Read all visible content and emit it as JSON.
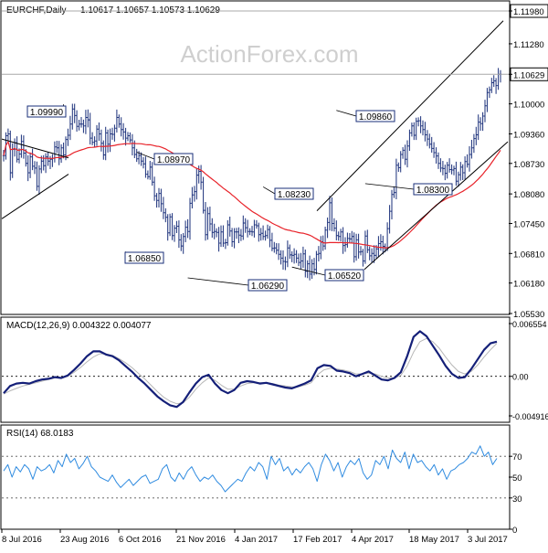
{
  "chart_data": [
    {
      "type": "ohlc",
      "panel": "price",
      "title": "EURCHF,Daily",
      "ohlc_header": "1.10617 1.10657 1.10573 1.10629",
      "watermark": "ActionForex.com",
      "ylim": [
        1.0553,
        1.1198
      ],
      "y_ticks": [
        {
          "value": 1.1198,
          "label": "1.11980",
          "highlight": true
        },
        {
          "value": 1.1128,
          "label": "1.11280"
        },
        {
          "value": 1.1063,
          "label": "1.10629",
          "highlight": true
        },
        {
          "value": 1.1,
          "label": "1.10000"
        },
        {
          "value": 1.0936,
          "label": "1.09360"
        },
        {
          "value": 1.0873,
          "label": "1.08730"
        },
        {
          "value": 1.0808,
          "label": "1.08080"
        },
        {
          "value": 1.0745,
          "label": "1.07450"
        },
        {
          "value": 1.0681,
          "label": "1.06810"
        },
        {
          "value": 1.0618,
          "label": "1.06180"
        },
        {
          "value": 1.0553,
          "label": "1.05530"
        }
      ],
      "last_price": 1.10629,
      "x_ticks": [
        "8 Jul 2016",
        "23 Aug 2016",
        "6 Oct 2016",
        "21 Nov 2016",
        "4 Jan 2017",
        "17 Feb 2017",
        "4 Apr 2017",
        "18 May 2017",
        "3 Jul 2017"
      ],
      "bar_count": 270,
      "close_series": [
        1.089,
        1.0932,
        1.0936,
        1.0853,
        1.0903,
        1.0917,
        1.0882,
        1.0893,
        1.092,
        1.0895,
        1.0873,
        1.0853,
        1.0887,
        1.0867,
        1.0863,
        1.0824,
        1.0861,
        1.0878,
        1.0868,
        1.0887,
        1.0878,
        1.0882,
        1.0884,
        1.0908,
        1.0906,
        1.0883,
        1.0906,
        1.0891,
        1.0924,
        1.0933,
        1.0957,
        1.0989,
        1.0975,
        1.0952,
        1.0957,
        1.0957,
        1.0953,
        1.0971,
        1.0966,
        1.0927,
        1.0918,
        1.0921,
        1.0946,
        1.0936,
        1.0916,
        1.0891,
        1.0938,
        1.0914,
        1.0936,
        1.0935,
        1.0948,
        1.0971,
        1.0957,
        1.0945,
        1.094,
        1.0927,
        1.0932,
        1.0923,
        1.0906,
        1.0892,
        1.0883,
        1.089,
        1.0878,
        1.0872,
        1.085,
        1.0845,
        1.0865,
        1.0833,
        1.0804,
        1.0794,
        1.0809,
        1.0787,
        1.0768,
        1.0758,
        1.0725,
        1.0759,
        1.0719,
        1.0735,
        1.0739,
        1.071,
        1.0697,
        1.0717,
        1.0737,
        1.0728,
        1.0788,
        1.0806,
        1.0813,
        1.0848,
        1.0856,
        1.0833,
        1.0773,
        1.0721,
        1.0766,
        1.0744,
        1.0726,
        1.0728,
        1.0726,
        1.0703,
        1.0727,
        1.0703,
        1.0704,
        1.0742,
        1.0729,
        1.0706,
        1.0727,
        1.0727,
        1.072,
        1.0718,
        1.0746,
        1.0736,
        1.0728,
        1.0728,
        1.0727,
        1.0742,
        1.074,
        1.0721,
        1.0724,
        1.0717,
        1.0719,
        1.0732,
        1.0709,
        1.0692,
        1.0693,
        1.0688,
        1.0679,
        1.0671,
        1.0664,
        1.0663,
        1.0693,
        1.0678,
        1.0677,
        1.0679,
        1.0671,
        1.0662,
        1.0665,
        1.068,
        1.0643,
        1.0659,
        1.0637,
        1.0659,
        1.0647,
        1.0679,
        1.0681,
        1.0706,
        1.0697,
        1.0731,
        1.0747,
        1.0789,
        1.0745,
        1.0735,
        1.0719,
        1.0717,
        1.0727,
        1.0698,
        1.07,
        1.0713,
        1.0712,
        1.0717,
        1.0674,
        1.071,
        1.0684,
        1.0685,
        1.0665,
        1.0718,
        1.0689,
        1.0676,
        1.0681,
        1.0677,
        1.0691,
        1.0702,
        1.0706,
        1.0696,
        1.0693,
        1.0734,
        1.0771,
        1.0807,
        1.0811,
        1.0869,
        1.0864,
        1.0892,
        1.0901,
        1.0882,
        1.091,
        1.0938,
        1.0953,
        1.0933,
        1.0963,
        1.0964,
        1.0953,
        1.0945,
        1.0934,
        1.0925,
        1.0914,
        1.0905,
        1.0896,
        1.0889,
        1.0873,
        1.0863,
        1.0862,
        1.0852,
        1.0869,
        1.086,
        1.0859,
        1.0862,
        1.0835,
        1.0849,
        1.0865,
        1.0853,
        1.0877,
        1.0871,
        1.0892,
        1.0906,
        1.0926,
        1.0934,
        1.0961,
        1.0958,
        1.0974,
        1.0996,
        1.1024,
        1.103,
        1.1045,
        1.1049,
        1.1039,
        1.1063,
        1.1063
      ],
      "ma_period": 55,
      "annotations": [
        {
          "label": "1.09990",
          "price": 1.0999
        },
        {
          "label": "1.08970",
          "price": 1.0897
        },
        {
          "label": "1.06850",
          "price": 1.0685
        },
        {
          "label": "1.06290",
          "price": 1.0629
        },
        {
          "label": "1.08230",
          "price": 1.0823
        },
        {
          "label": "1.06520",
          "price": 1.0652
        },
        {
          "label": "1.09860",
          "price": 1.0986
        },
        {
          "label": "1.08300",
          "price": 1.083
        }
      ],
      "colors": {
        "bars": "#1a2f7a",
        "ma": "#e8232a",
        "trendline": "#000000",
        "label_border": "#1a2f7a"
      }
    },
    {
      "type": "line",
      "panel": "macd",
      "title": "MACD(12,26,9) 0.004322 0.004077",
      "ylim": [
        -0.004916,
        0.006554
      ],
      "y_ticks": [
        {
          "value": 0.006554,
          "label": "0.006554"
        },
        {
          "value": 0,
          "label": "0.00"
        },
        {
          "value": -0.004916,
          "label": "-0.004916"
        }
      ],
      "series": [
        {
          "name": "MACD",
          "values": [
            -0.0021,
            -0.0012,
            -0.0009,
            -0.0008,
            -0.0009,
            -0.0006,
            -0.0004,
            -0.0003,
            -0.0001,
            -0.0002,
            0.0001,
            0.0008,
            0.0016,
            0.0025,
            0.0031,
            0.0031,
            0.0027,
            0.0025,
            0.002,
            0.0013,
            0.0006,
            -0.0002,
            -0.0009,
            -0.0017,
            -0.0025,
            -0.0031,
            -0.0036,
            -0.0038,
            -0.0032,
            -0.002,
            -0.0009,
            -0.0001,
            0.0002,
            -0.0009,
            -0.0017,
            -0.0021,
            -0.0017,
            -0.0008,
            -0.0006,
            -0.0007,
            -0.0009,
            -0.0008,
            -0.001,
            -0.0012,
            -0.0014,
            -0.0015,
            -0.0012,
            -0.0009,
            -0.0005,
            0.001,
            0.0014,
            0.0013,
            0.0007,
            0.0006,
            0.0004,
            0.0,
            0.0003,
            0.0006,
            0.0001,
            -0.0004,
            -0.0005,
            -0.0002,
            0.0005,
            0.0025,
            0.0049,
            0.0056,
            0.005,
            0.0038,
            0.0026,
            0.0013,
            0.0003,
            -0.0002,
            -0.0001,
            0.0009,
            0.0021,
            0.0033,
            0.0041,
            0.0043
          ]
        },
        {
          "name": "Signal",
          "values": [
            -0.0022,
            -0.0018,
            -0.0015,
            -0.0012,
            -0.001,
            -0.0008,
            -0.0006,
            -0.0004,
            -0.0002,
            -0.0002,
            0.0,
            0.0005,
            0.0011,
            0.0018,
            0.0024,
            0.0028,
            0.0028,
            0.0026,
            0.0022,
            0.0017,
            0.0011,
            0.0004,
            -0.0003,
            -0.0011,
            -0.0019,
            -0.0026,
            -0.0031,
            -0.0034,
            -0.0033,
            -0.0026,
            -0.0016,
            -0.0008,
            -0.0002,
            -0.0005,
            -0.0011,
            -0.0016,
            -0.0016,
            -0.0012,
            -0.0009,
            -0.0008,
            -0.0008,
            -0.0008,
            -0.0009,
            -0.0011,
            -0.0012,
            -0.0013,
            -0.0013,
            -0.0011,
            -0.0008,
            0.0002,
            0.0008,
            0.001,
            0.0009,
            0.0008,
            0.0006,
            0.0003,
            0.0003,
            0.0004,
            0.0003,
            0.0,
            -0.0002,
            -0.0002,
            0.0001,
            0.0013,
            0.003,
            0.0043,
            0.0047,
            0.0043,
            0.0035,
            0.0024,
            0.0014,
            0.0006,
            0.0003,
            0.0006,
            0.0014,
            0.0024,
            0.0033,
            0.0041
          ]
        }
      ],
      "colors": {
        "macd": "#141f78",
        "signal": "#b7b7b7"
      }
    },
    {
      "type": "line",
      "panel": "rsi",
      "title": "RSI(14) 68.0183",
      "ylim": [
        0,
        100
      ],
      "y_ticks": [
        {
          "value": 70,
          "label": "70"
        },
        {
          "value": 50,
          "label": "50"
        },
        {
          "value": 30,
          "label": "30"
        },
        {
          "value": 0,
          "label": "0"
        }
      ],
      "series": [
        {
          "name": "RSI",
          "values": [
            56,
            62,
            50,
            60,
            55,
            62,
            58,
            48,
            60,
            56,
            58,
            62,
            54,
            66,
            60,
            72,
            64,
            68,
            58,
            63,
            70,
            60,
            56,
            50,
            48,
            46,
            52,
            45,
            40,
            44,
            48,
            42,
            46,
            50,
            52,
            44,
            46,
            48,
            58,
            62,
            50,
            46,
            54,
            48,
            56,
            60,
            52,
            46,
            50,
            48,
            52,
            46,
            42,
            36,
            40,
            44,
            48,
            46,
            54,
            60,
            56,
            64,
            60,
            48,
            70,
            62,
            68,
            56,
            60,
            52,
            58,
            54,
            60,
            64,
            58,
            46,
            62,
            72,
            66,
            56,
            64,
            50,
            60,
            66,
            62,
            68,
            54,
            48,
            52,
            66,
            62,
            70,
            58,
            76,
            68,
            64,
            74,
            58,
            72,
            64,
            66,
            60,
            56,
            62,
            52,
            58,
            48,
            56,
            58,
            62,
            64,
            68,
            74,
            72,
            80,
            70,
            74,
            62,
            68
          ]
        }
      ],
      "colors": {
        "rsi": "#2f8be0"
      }
    }
  ]
}
